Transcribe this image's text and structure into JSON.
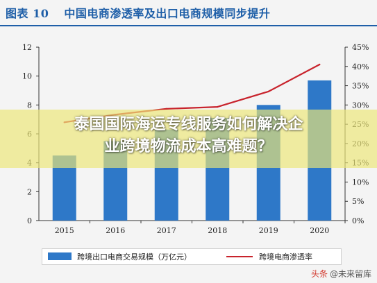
{
  "header": {
    "figure_number": "图表 10",
    "title": "中国电商渗透率及出口电商规模同步提升"
  },
  "overlay": {
    "headline_line1": "泰国国际海运专线服务如何解决企",
    "headline_line2": "业跨境物流成本高难题？"
  },
  "watermark": {
    "prefix": "头条",
    "text": "@未来留库"
  },
  "colors": {
    "bar": "#2e78c8",
    "line": "#c8232c",
    "title": "#1f5fa8"
  },
  "chart_data": {
    "type": "bar",
    "title": "中国电商渗透率及出口电商规模同步提升",
    "categories": [
      "2015",
      "2016",
      "2017",
      "2018",
      "2019",
      "2020"
    ],
    "series": [
      {
        "name": "跨境出口电商交易规模（万亿元）",
        "type": "bar",
        "axis": "left",
        "values": [
          4.5,
          5.5,
          6.3,
          7.1,
          8.0,
          9.7
        ]
      },
      {
        "name": "跨境电商渗透率",
        "type": "line",
        "axis": "right",
        "values": [
          25.5,
          27.5,
          29.0,
          29.5,
          33.5,
          40.5
        ]
      }
    ],
    "y_left": {
      "range": [
        0,
        12
      ],
      "ticks": [
        "0",
        "2",
        "4",
        "6",
        "8",
        "10",
        "12"
      ]
    },
    "y_right": {
      "range": [
        0,
        45
      ],
      "ticks": [
        "0%",
        "5%",
        "10%",
        "15%",
        "20%",
        "25%",
        "30%",
        "35%",
        "40%",
        "45%"
      ]
    },
    "legend_position": "bottom",
    "grid": false
  }
}
